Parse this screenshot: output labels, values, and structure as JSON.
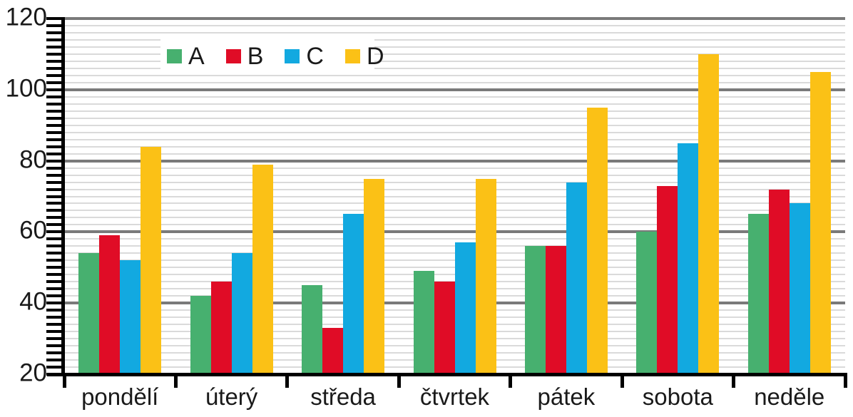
{
  "chart_data": {
    "type": "bar",
    "title": "",
    "xlabel": "",
    "ylabel": "",
    "categories": [
      "pondělí",
      "úterý",
      "středa",
      "čtvrtek",
      "pátek",
      "sobota",
      "neděle"
    ],
    "series": [
      {
        "name": "A",
        "color": "#47B06F",
        "values": [
          54,
          42,
          45,
          49,
          56,
          60,
          65
        ]
      },
      {
        "name": "B",
        "color": "#E00C26",
        "values": [
          59,
          46,
          33,
          46,
          56,
          73,
          72
        ]
      },
      {
        "name": "C",
        "color": "#12A9E0",
        "values": [
          52,
          54,
          65,
          57,
          74,
          85,
          68
        ]
      },
      {
        "name": "D",
        "color": "#FBC116",
        "values": [
          84,
          79,
          75,
          75,
          95,
          110,
          105
        ]
      }
    ],
    "ylim": [
      20,
      120
    ],
    "ytick_labels": [
      "120",
      "100",
      "80",
      "60",
      "40",
      "20"
    ],
    "yticks": [
      120,
      100,
      80,
      60,
      40,
      20
    ],
    "major_step": 20,
    "minor_step": 2,
    "grid": "horizontal",
    "legend_position": "top-left-inside",
    "style": {
      "major_grid_color": "#7A7A7A",
      "minor_grid_color": "#DADADA",
      "axis_color": "#000000",
      "text_color": "#1A1A1A",
      "background": "#FFFFFF"
    }
  }
}
